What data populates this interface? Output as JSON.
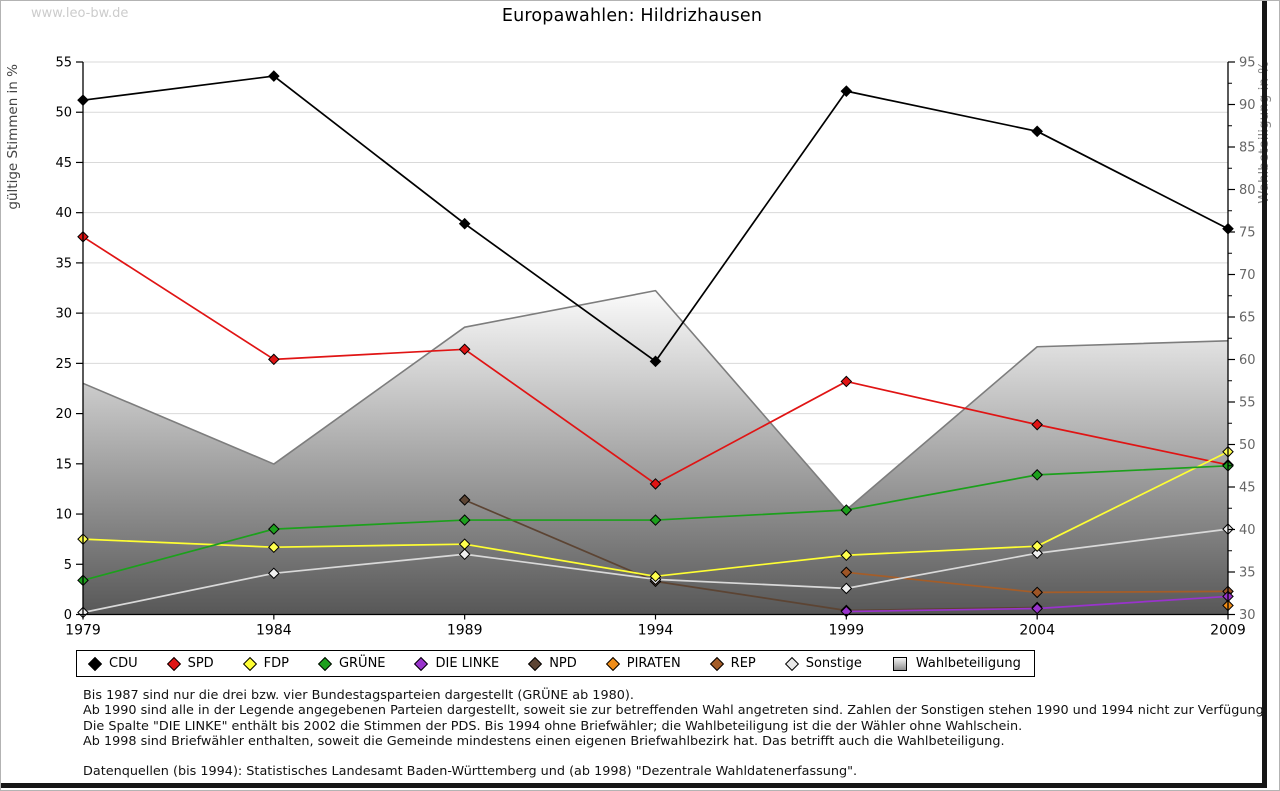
{
  "watermark": "www.leo-bw.de",
  "title": "Europawahlen: Hildrizhausen",
  "chart_data": {
    "type": "line",
    "x": [
      1979,
      1984,
      1989,
      1994,
      1999,
      2004,
      2009
    ],
    "left_axis": {
      "label": "gültige Stimmen in %",
      "min": 0,
      "max": 55,
      "tick_step": 5
    },
    "right_axis": {
      "label": "Wahlbeteiligung in %",
      "min": 30,
      "max": 95,
      "tick_step": 5,
      "minor_step": 2.5
    },
    "grid": true,
    "legend_position": "bottom",
    "series": [
      {
        "name": "REP",
        "axis": "left",
        "color": "#a55d28",
        "marker_fill": "#9e5526",
        "values": [
          null,
          null,
          null,
          null,
          4.2,
          2.2,
          2.3
        ]
      },
      {
        "name": "NPD",
        "axis": "left",
        "color": "#5c4433",
        "marker_fill": "#5c4433",
        "values": [
          null,
          null,
          11.4,
          3.3,
          0.4,
          0.7,
          null
        ]
      },
      {
        "name": "Sonstige",
        "axis": "left",
        "color": "#d9d9d9",
        "marker_fill": "#f0f0f0",
        "values": [
          0.2,
          4.1,
          6.0,
          3.5,
          2.6,
          6.1,
          8.5
        ]
      },
      {
        "name": "DIE LINKE",
        "axis": "left",
        "color": "#9933cc",
        "marker_fill": "#9933cc",
        "values": [
          null,
          null,
          null,
          null,
          0.3,
          0.6,
          1.8
        ]
      },
      {
        "name": "PIRATEN",
        "axis": "left",
        "color": "#f08d18",
        "marker_fill": "#f08d18",
        "values": [
          null,
          null,
          null,
          null,
          null,
          null,
          0.9
        ]
      },
      {
        "name": "SPD",
        "axis": "left",
        "color": "#e01414",
        "marker_fill": "#e01414",
        "values": [
          37.6,
          25.4,
          26.4,
          13.0,
          23.2,
          18.9,
          14.9
        ]
      },
      {
        "name": "FDP",
        "axis": "left",
        "color": "#ffff33",
        "marker_fill": "#ffff4d",
        "values": [
          7.5,
          6.7,
          7.0,
          3.8,
          5.9,
          6.8,
          16.2
        ]
      },
      {
        "name": "GRÜNE",
        "axis": "left",
        "color": "#1ca01c",
        "marker_fill": "#1ca01c",
        "values": [
          3.4,
          8.5,
          9.4,
          9.4,
          10.4,
          13.9,
          14.8
        ]
      },
      {
        "name": "CDU",
        "axis": "left",
        "color": "#000000",
        "marker_fill": "#000000",
        "values": [
          51.2,
          53.6,
          38.9,
          25.2,
          52.1,
          48.1,
          38.4
        ]
      }
    ],
    "area_series": {
      "name": "Wahlbeteiligung",
      "axis": "right",
      "values": [
        57.2,
        47.7,
        63.8,
        68.1,
        42.3,
        61.5,
        62.2
      ],
      "fill_top": "#fbfbfb",
      "fill_bottom": "#575757",
      "stroke": "#7d7d7d"
    }
  },
  "legend": {
    "items": [
      {
        "label": "CDU",
        "marker": "diamond",
        "color": "#000000"
      },
      {
        "label": "SPD",
        "marker": "diamond",
        "color": "#e01414"
      },
      {
        "label": "FDP",
        "marker": "diamond",
        "color": "#ffff33"
      },
      {
        "label": "GRÜNE",
        "marker": "diamond",
        "color": "#1ca01c"
      },
      {
        "label": "DIE LINKE",
        "marker": "diamond",
        "color": "#9933cc"
      },
      {
        "label": "NPD",
        "marker": "diamond",
        "color": "#5c4433"
      },
      {
        "label": "PIRATEN",
        "marker": "diamond",
        "color": "#f08d18"
      },
      {
        "label": "REP",
        "marker": "diamond",
        "color": "#a55d28"
      },
      {
        "label": "Sonstige",
        "marker": "diamond",
        "color": "#e8e8e8"
      },
      {
        "label": "Wahlbeteiligung",
        "marker": "square",
        "color": "#c9c9c9"
      }
    ]
  },
  "footnotes": [
    "Bis 1987 sind nur die drei bzw. vier Bundestagsparteien dargestellt (GRÜNE ab 1980).",
    "Ab 1990 sind alle in der Legende angegebenen Parteien dargestellt, soweit sie zur betreffenden Wahl angetreten sind. Zahlen der Sonstigen stehen 1990 und 1994 nicht zur Verfügung.",
    "Die Spalte \"DIE LINKE\" enthält bis 2002 die Stimmen der PDS. Bis 1994 ohne Briefwähler; die Wahlbeteiligung ist die der Wähler ohne Wahlschein.",
    "Ab 1998 sind Briefwähler enthalten, soweit die Gemeinde mindestens einen eigenen Briefwahlbezirk hat. Das betrifft auch die Wahlbeteiligung.",
    "",
    "Datenquellen (bis 1994): Statistisches Landesamt Baden-Württemberg und (ab 1998) \"Dezentrale Wahldatenerfassung\"."
  ]
}
